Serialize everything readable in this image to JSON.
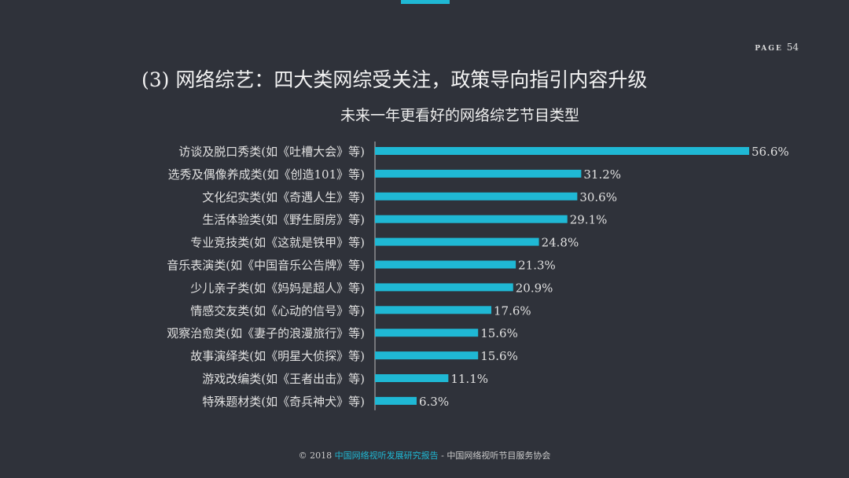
{
  "page": {
    "label": "PAGE",
    "number": "54"
  },
  "title": "(3) 网络综艺：四大类网综受关注，政策导向指引内容升级",
  "footer": {
    "copyright": "© 2018",
    "report": "中国网络视听发展研究报告",
    "sep": "-",
    "org": "中国网络视听节目服务协会"
  },
  "colors": {
    "bar": "#1fb8d4",
    "accent": "#1fb8d4",
    "background": "#2f323a"
  },
  "chart_data": {
    "type": "bar",
    "orientation": "horizontal",
    "title": "未来一年更看好的网络综艺节目类型",
    "categories": [
      "访谈及脱口秀类(如《吐槽大会》等)",
      "选秀及偶像养成类(如《创造101》等)",
      "文化纪实类(如《奇遇人生》等)",
      "生活体验类(如《野生厨房》等)",
      "专业竞技类(如《这就是铁甲》等)",
      "音乐表演类(如《中国音乐公告牌》等)",
      "少儿亲子类(如《妈妈是超人》等)",
      "情感交友类(如《心动的信号》等)",
      "观察治愈类(如《妻子的浪漫旅行》等)",
      "故事演绎类(如《明星大侦探》等)",
      "游戏改编类(如《王者出击》等)",
      "特殊题材类(如《奇兵神犬》等)"
    ],
    "values": [
      56.6,
      31.2,
      30.6,
      29.1,
      24.8,
      21.3,
      20.9,
      17.6,
      15.6,
      15.6,
      11.1,
      6.3
    ],
    "labels": [
      "56.6%",
      "31.2%",
      "30.6%",
      "29.1%",
      "24.8%",
      "21.3%",
      "20.9%",
      "17.6%",
      "15.6%",
      "15.6%",
      "11.1%",
      "6.3%"
    ],
    "grid": false
  }
}
